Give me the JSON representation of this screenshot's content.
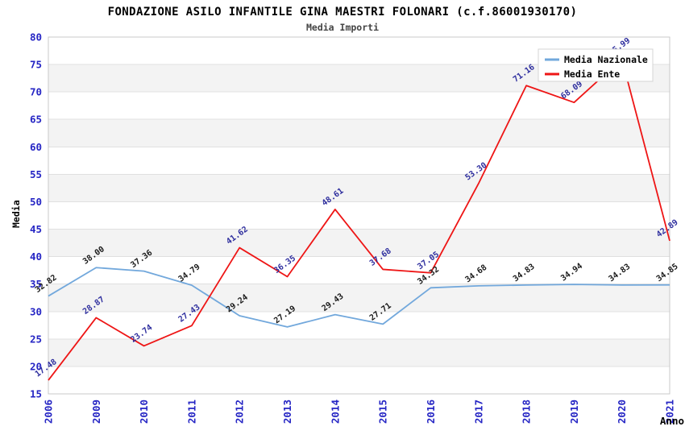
{
  "title": "FONDAZIONE ASILO INFANTILE GINA MAESTRI FOLONARI (c.f.86001930170)",
  "subtitle": "Media Importi",
  "chart_data": {
    "type": "line",
    "categories": [
      "2006",
      "2009",
      "2010",
      "2011",
      "2012",
      "2013",
      "2014",
      "2015",
      "2016",
      "2017",
      "2018",
      "2019",
      "2020",
      "2021"
    ],
    "series": [
      {
        "name": "Media Nazionale",
        "color": "#72a8dc",
        "label_color": "#1a1a1a",
        "values": [
          32.82,
          38.0,
          37.36,
          34.79,
          29.24,
          27.19,
          29.43,
          27.71,
          34.32,
          34.68,
          34.83,
          34.94,
          34.83,
          34.85
        ]
      },
      {
        "name": "Media Ente",
        "color": "#ee1515",
        "label_color": "#2e2e9e",
        "values": [
          17.48,
          28.87,
          23.74,
          27.43,
          41.62,
          36.35,
          48.61,
          37.68,
          37.05,
          53.3,
          71.16,
          68.09,
          75.99,
          42.89
        ]
      }
    ],
    "xlabel": "Anno",
    "ylabel": "Media",
    "ylim": [
      15,
      80
    ],
    "ytick_step": 5,
    "grid": true,
    "legend_position": "top-right",
    "colors": {
      "axis_tick": "#2525c4",
      "band": "#f3f3f3",
      "gridline": "#e0e0e0",
      "plot_border": "#c9c9c9",
      "legend_border": "#d4d4d4",
      "legend_bg": "#ffffff",
      "axis_title": "#000000"
    }
  }
}
